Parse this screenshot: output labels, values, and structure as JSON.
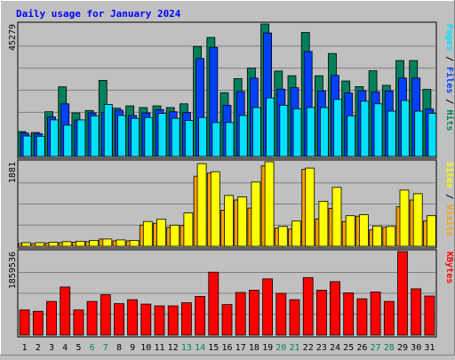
{
  "chart_data": {
    "type": "bar",
    "title": "Daily usage for January 2024",
    "categories": [
      "1",
      "2",
      "3",
      "4",
      "5",
      "6",
      "7",
      "8",
      "9",
      "10",
      "11",
      "12",
      "13",
      "14",
      "15",
      "16",
      "17",
      "18",
      "19",
      "20",
      "21",
      "22",
      "23",
      "24",
      "25",
      "26",
      "27",
      "28",
      "29",
      "30",
      "31"
    ],
    "weekend_days": [
      "6",
      "7",
      "13",
      "14",
      "20",
      "21",
      "27",
      "28"
    ],
    "panels": [
      {
        "id": "top",
        "scale_label": "45279",
        "ylim": [
          0,
          45279
        ],
        "right_label": [
          {
            "text": "Pages",
            "color": "#00e0ff"
          },
          {
            "text": " / ",
            "color": "#000000"
          },
          {
            "text": "Files",
            "color": "#0040ff"
          },
          {
            "text": " / ",
            "color": "#000000"
          },
          {
            "text": "Hits",
            "color": "#00805c"
          }
        ],
        "series": [
          {
            "name": "Hits",
            "color": "#00805c",
            "values": [
              8500,
              8200,
              15300,
              23800,
              14900,
              15700,
              26000,
              16500,
              17300,
              16700,
              17300,
              16700,
              18000,
              37600,
              40700,
              21800,
              26600,
              30200,
              47200,
              29200,
              27600,
              42400,
              27600,
              35200,
              25800,
              23900,
              29300,
              24300,
              32800,
              32800,
              22900
            ]
          },
          {
            "name": "Files",
            "color": "#0040ff",
            "values": [
              8000,
              7800,
              13500,
              18000,
              12500,
              14900,
              15000,
              15800,
              14000,
              14900,
              16000,
              15300,
              15000,
              33500,
              37300,
              17500,
              22200,
              26800,
              42200,
              23000,
              23500,
              35900,
              22400,
              27700,
              21700,
              22500,
              22100,
              22400,
              26800,
              26800,
              16200
            ]
          },
          {
            "name": "Pages",
            "color": "#00e0ff",
            "values": [
              7000,
              6900,
              12500,
              10700,
              12500,
              13900,
              17800,
              14000,
              13000,
              13300,
              14700,
              13000,
              12300,
              13300,
              11600,
              11600,
              14000,
              16700,
              20000,
              17500,
              16300,
              16700,
              16700,
              19500,
              13900,
              18900,
              18000,
              15500,
              19100,
              15500,
              14700
            ]
          }
        ]
      },
      {
        "id": "middle",
        "scale_label": "1881",
        "ylim": [
          0,
          1881
        ],
        "right_label": [
          {
            "text": "Sites",
            "color": "#ffff00"
          },
          {
            "text": " / ",
            "color": "#000000"
          },
          {
            "text": "Visits",
            "color": "#ffa000"
          }
        ],
        "series": [
          {
            "name": "Visits",
            "color": "#ffa000",
            "values": [
              60,
              60,
              70,
              80,
              90,
              100,
              160,
              120,
              120,
              470,
              510,
              420,
              460,
              1560,
              1630,
              800,
              1030,
              850,
              1790,
              400,
              380,
              1710,
              610,
              840,
              550,
              670,
              360,
              420,
              880,
              1030,
              560
            ]
          },
          {
            "name": "Sites",
            "color": "#ffff00",
            "values": [
              80,
              80,
              90,
              100,
              110,
              130,
              160,
              140,
              130,
              550,
              600,
              470,
              740,
              1840,
              1660,
              1130,
              1100,
              1430,
              1890,
              440,
              560,
              1740,
              1000,
              1310,
              680,
              700,
              450,
              440,
              1250,
              1170,
              680
            ]
          }
        ]
      },
      {
        "id": "bottom",
        "scale_label": "1859536",
        "ylim": [
          0,
          1859536
        ],
        "right_label": [
          {
            "text": "KBytes",
            "color": "#ff0000"
          }
        ],
        "series": [
          {
            "name": "KBytes",
            "color": "#ff0000",
            "values": [
              560000,
              530000,
              750000,
              1070000,
              560000,
              750000,
              900000,
              700000,
              790000,
              690000,
              650000,
              650000,
              720000,
              860000,
              1400000,
              680000,
              950000,
              1000000,
              1250000,
              930000,
              790000,
              1280000,
              1000000,
              1190000,
              940000,
              810000,
              960000,
              750000,
              1880000,
              1030000,
              870000
            ]
          }
        ]
      }
    ]
  }
}
